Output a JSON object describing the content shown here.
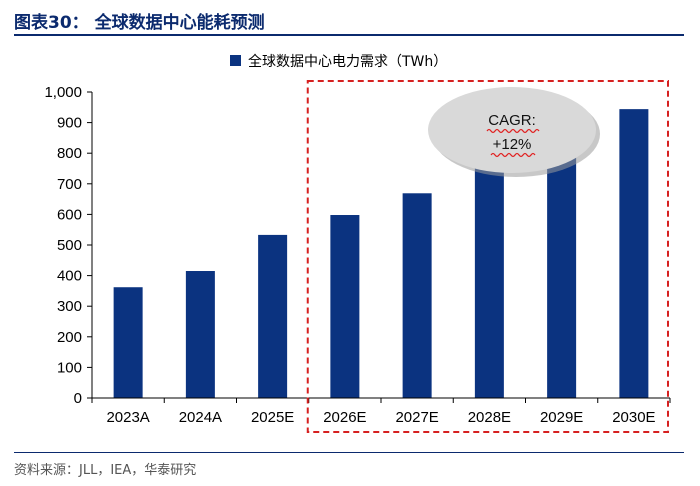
{
  "figure": {
    "title": "图表30：  全球数据中心能耗预测",
    "source": "资料来源：JLL，IEA，华泰研究"
  },
  "chart_data": {
    "type": "bar",
    "title": "全球数据中心能耗预测",
    "categories": [
      "2023A",
      "2024A",
      "2025E",
      "2026E",
      "2027E",
      "2028E",
      "2029E",
      "2030E"
    ],
    "series": [
      {
        "name": "全球数据中心电力需求（TWh）",
        "values": [
          362,
          415,
          533,
          598,
          669,
          760,
          840,
          944
        ]
      }
    ],
    "ylim": [
      0,
      1000
    ],
    "yticks": [
      0,
      100,
      200,
      300,
      400,
      500,
      600,
      700,
      800,
      900,
      1000
    ],
    "ytick_labels": [
      "0",
      "100",
      "200",
      "300",
      "400",
      "500",
      "600",
      "700",
      "800",
      "900",
      "1,000"
    ],
    "xlabel": "",
    "ylabel": "",
    "legend_position": "top-right",
    "annotation": {
      "line1": "CAGR:",
      "line2": "+12%"
    },
    "highlight_range": [
      "2026E",
      "2030E"
    ],
    "grid": false
  },
  "colors": {
    "bar": "#0b3380",
    "highlight_border": "#d62020",
    "title": "#0b2a6e",
    "bubble": "#d9d9d9"
  }
}
